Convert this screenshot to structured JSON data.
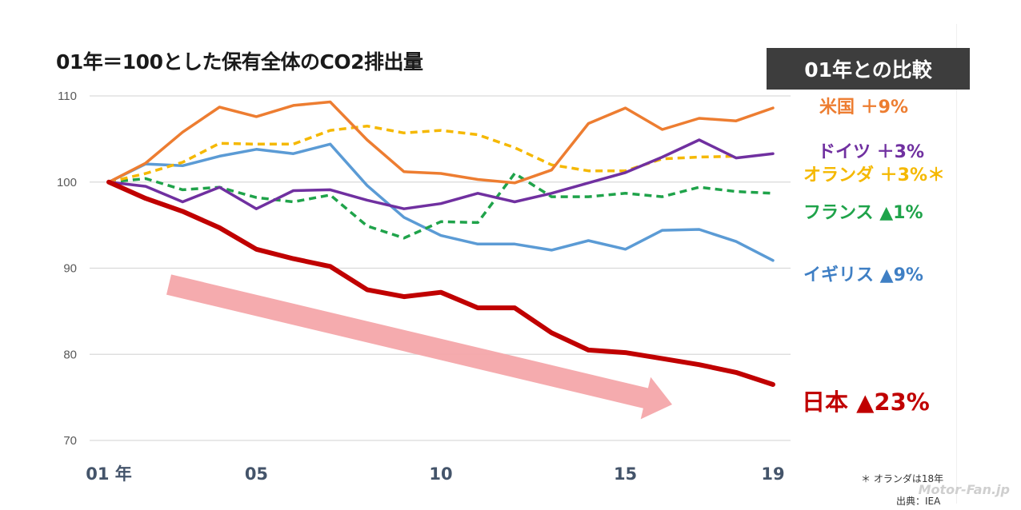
{
  "title": "01年＝100とした保有全体のCO2排出量",
  "comparison_box": "01年との比較",
  "notes": {
    "footnote": "＊ オランダは18年",
    "source": "出典：IEA"
  },
  "watermark": "Motor-Fan.jp",
  "chart_data": {
    "type": "line",
    "title": "01年＝100とした保有全体のCO2排出量",
    "xlabel": "",
    "ylabel": "",
    "x": [
      2001,
      2002,
      2003,
      2004,
      2005,
      2006,
      2007,
      2008,
      2009,
      2010,
      2011,
      2012,
      2013,
      2014,
      2015,
      2016,
      2017,
      2018,
      2019
    ],
    "xticks": [
      {
        "value": 2001,
        "label": "01 年"
      },
      {
        "value": 2005,
        "label": "05"
      },
      {
        "value": 2010,
        "label": "10"
      },
      {
        "value": 2015,
        "label": "15"
      },
      {
        "value": 2019,
        "label": "19"
      }
    ],
    "ylim": [
      70,
      110
    ],
    "yticks": [
      70,
      80,
      90,
      100,
      110
    ],
    "grid": true,
    "legend": "labels at right end of lines",
    "series": [
      {
        "name": "米国",
        "label": "米国 ＋9%",
        "color": "#ed7d31",
        "style": "solid",
        "values": [
          100,
          102.2,
          105.8,
          108.7,
          107.6,
          108.9,
          109.3,
          104.9,
          101.2,
          101.0,
          100.3,
          99.9,
          101.4,
          106.8,
          108.6,
          106.1,
          107.4,
          107.1,
          108.6
        ]
      },
      {
        "name": "ドイツ",
        "label": "ドイツ ＋3%",
        "color": "#7030a0",
        "style": "solid",
        "values": [
          100,
          99.5,
          97.7,
          99.4,
          96.9,
          99.0,
          99.1,
          97.9,
          96.9,
          97.5,
          98.7,
          97.7,
          98.7,
          99.9,
          101.1,
          102.9,
          104.9,
          102.8,
          103.3
        ]
      },
      {
        "name": "オランダ",
        "label": "オランダ ＋3%＊",
        "color": "#f5b800",
        "style": "dashed",
        "values": [
          100,
          101.0,
          102.3,
          104.5,
          104.4,
          104.4,
          106.0,
          106.5,
          105.7,
          106.0,
          105.5,
          104.0,
          102.0,
          101.3,
          101.3,
          102.7,
          102.9,
          103.0,
          null
        ]
      },
      {
        "name": "フランス",
        "label": "フランス ▲1%",
        "color": "#1fa34a",
        "style": "dashed",
        "values": [
          100,
          100.4,
          99.1,
          99.4,
          98.2,
          97.7,
          98.5,
          94.9,
          93.5,
          95.4,
          95.3,
          101.0,
          98.3,
          98.3,
          98.7,
          98.3,
          99.4,
          98.9,
          98.7
        ]
      },
      {
        "name": "イギリス",
        "label": "イギリス ▲9%",
        "color": "#5b9bd5",
        "style": "solid",
        "values": [
          100,
          102.1,
          101.9,
          103.0,
          103.8,
          103.3,
          104.4,
          99.6,
          95.9,
          93.8,
          92.8,
          92.8,
          92.1,
          93.2,
          92.2,
          94.4,
          94.5,
          93.1,
          90.9
        ]
      },
      {
        "name": "日本",
        "label": "日本 ▲23%",
        "color": "#c00000",
        "style": "bold",
        "values": [
          100,
          98.1,
          96.6,
          94.7,
          92.2,
          91.1,
          90.2,
          87.5,
          86.7,
          87.2,
          85.4,
          85.4,
          82.5,
          80.5,
          80.2,
          79.5,
          78.8,
          77.9,
          76.5
        ]
      }
    ],
    "annotations": [
      {
        "type": "arrow",
        "direction": "downward-trend",
        "color": "#f4a6aa"
      }
    ]
  }
}
